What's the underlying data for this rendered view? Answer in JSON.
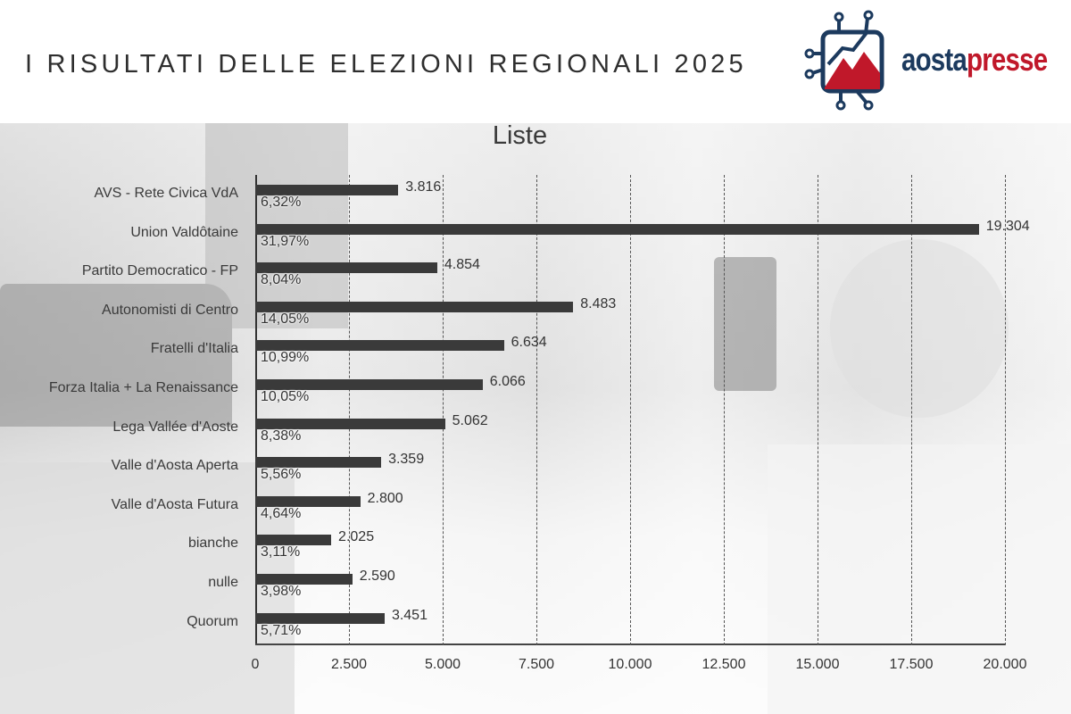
{
  "header": {
    "title": "I RISULTATI DELLE ELEZIONI REGIONALI 2025",
    "logo": {
      "part1": "aosta",
      "part2": "presse",
      "icon": "circuit-mountain-icon",
      "colors": {
        "navy": "#1c3a5e",
        "red": "#c0182a"
      }
    }
  },
  "chart_data": {
    "type": "bar",
    "orientation": "horizontal",
    "title": "Liste",
    "xlabel": "",
    "ylabel": "",
    "xlim": [
      0,
      20000
    ],
    "grid": "vertical dashed",
    "x_ticks": [
      "0",
      "2.500",
      "5.000",
      "7.500",
      "10.000",
      "12.500",
      "15.000",
      "17.500",
      "20.000"
    ],
    "categories": [
      "AVS - Rete Civica VdA",
      "Union Valdôtaine",
      "Partito Democratico - FP",
      "Autonomisti di Centro",
      "Fratelli d'Italia",
      "Forza Italia + La Renaissance",
      "Lega Vallée d'Aoste",
      "Valle d'Aosta Aperta",
      "Valle d'Aosta Futura",
      "bianche",
      "nulle",
      "Quorum"
    ],
    "values": [
      3816,
      19304,
      4854,
      8483,
      6634,
      6066,
      5062,
      3359,
      2800,
      2025,
      2590,
      3451
    ],
    "value_labels": [
      "3.816",
      "19.304",
      "4.854",
      "8.483",
      "6.634",
      "6.066",
      "5.062",
      "3.359",
      "2.800",
      "2.025",
      "2.590",
      "3.451"
    ],
    "percent_labels": [
      "6,32%",
      "31,97%",
      "8,04%",
      "14,05%",
      "10,99%",
      "10,05%",
      "8,38%",
      "5,56%",
      "4,64%",
      "3,11%",
      "3,98%",
      "5,71%"
    ],
    "bar_color": "#3a3a3a"
  }
}
